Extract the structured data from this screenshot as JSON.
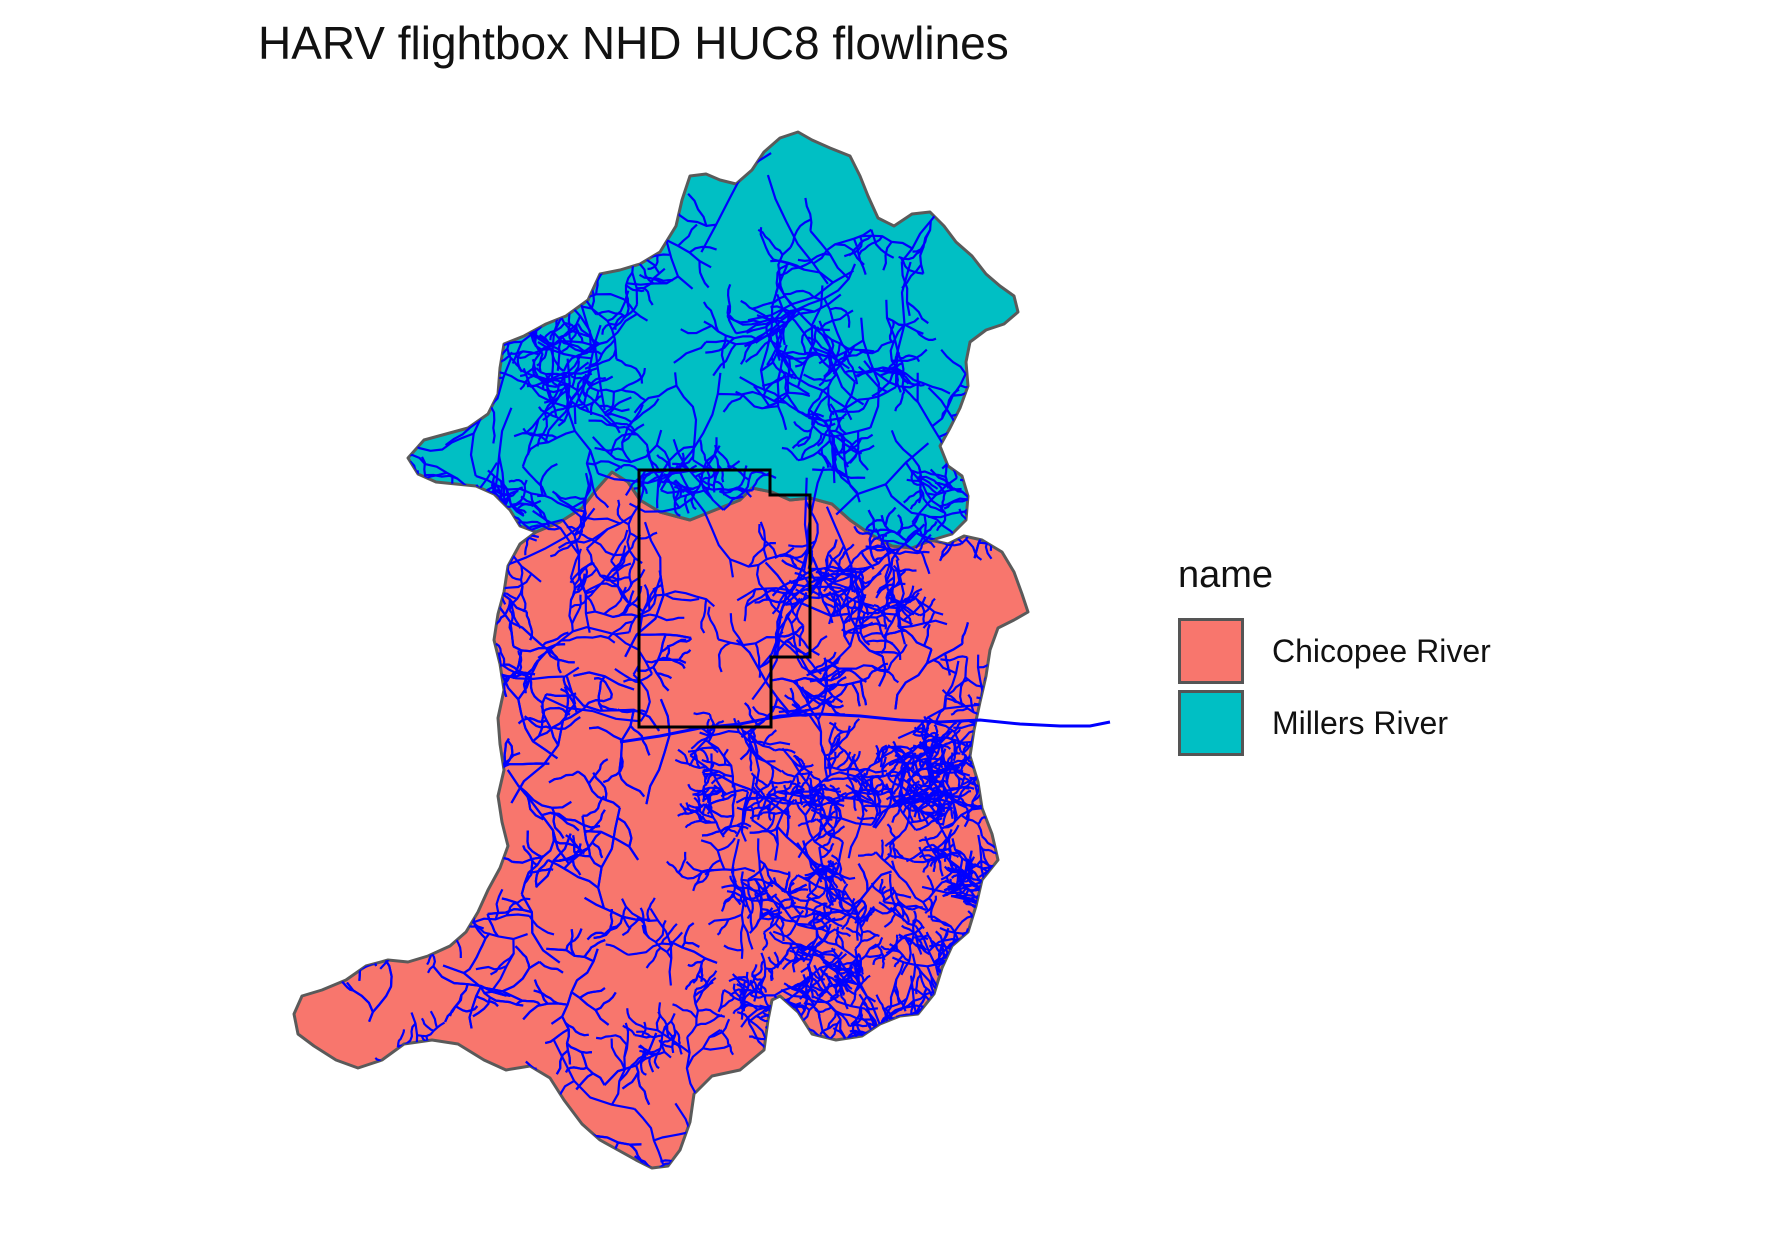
{
  "title": "HARV flightbox NHD HUC8 flowlines",
  "legend": {
    "title": "name",
    "items": [
      {
        "label": "Chicopee River",
        "color": "#F8766D"
      },
      {
        "label": "Millers River",
        "color": "#00BFC4"
      }
    ]
  },
  "styles": {
    "outline_color": "#5A5A5A",
    "flowline_color": "#0000FF",
    "flightbox_color": "#000000"
  }
}
